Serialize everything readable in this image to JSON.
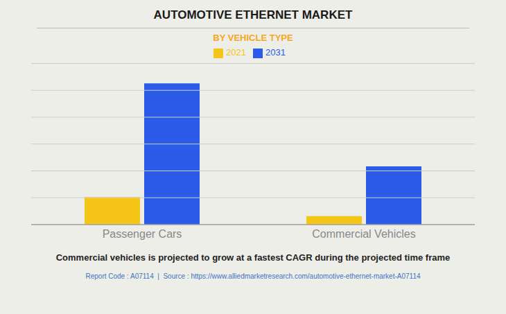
{
  "chart_data": {
    "type": "bar",
    "title": "AUTOMOTIVE ETHERNET MARKET",
    "subtitle": "BY VEHICLE TYPE",
    "categories": [
      "Passenger Cars",
      "Commercial Vehicles"
    ],
    "series": [
      {
        "name": "2021",
        "color": "#F5C518",
        "values": [
          1.8,
          0.55
        ]
      },
      {
        "name": "2031",
        "color": "#2B5BE8",
        "values": [
          9.2,
          3.8
        ]
      }
    ],
    "ylim": [
      0,
      10.5
    ],
    "yticks": [
      0,
      1.75,
      3.5,
      5.25,
      7,
      8.75,
      10.5
    ],
    "grid": true,
    "legend": "top",
    "tick_labels": "x",
    "annotations": [
      "Commercial vehicles is projected to grow at a fastest CAGR during the projected time frame",
      "Report Code : A07114  |  Source : https://www.alliedmarketresearch.com/automotive-ethernet-market-A07114"
    ]
  }
}
